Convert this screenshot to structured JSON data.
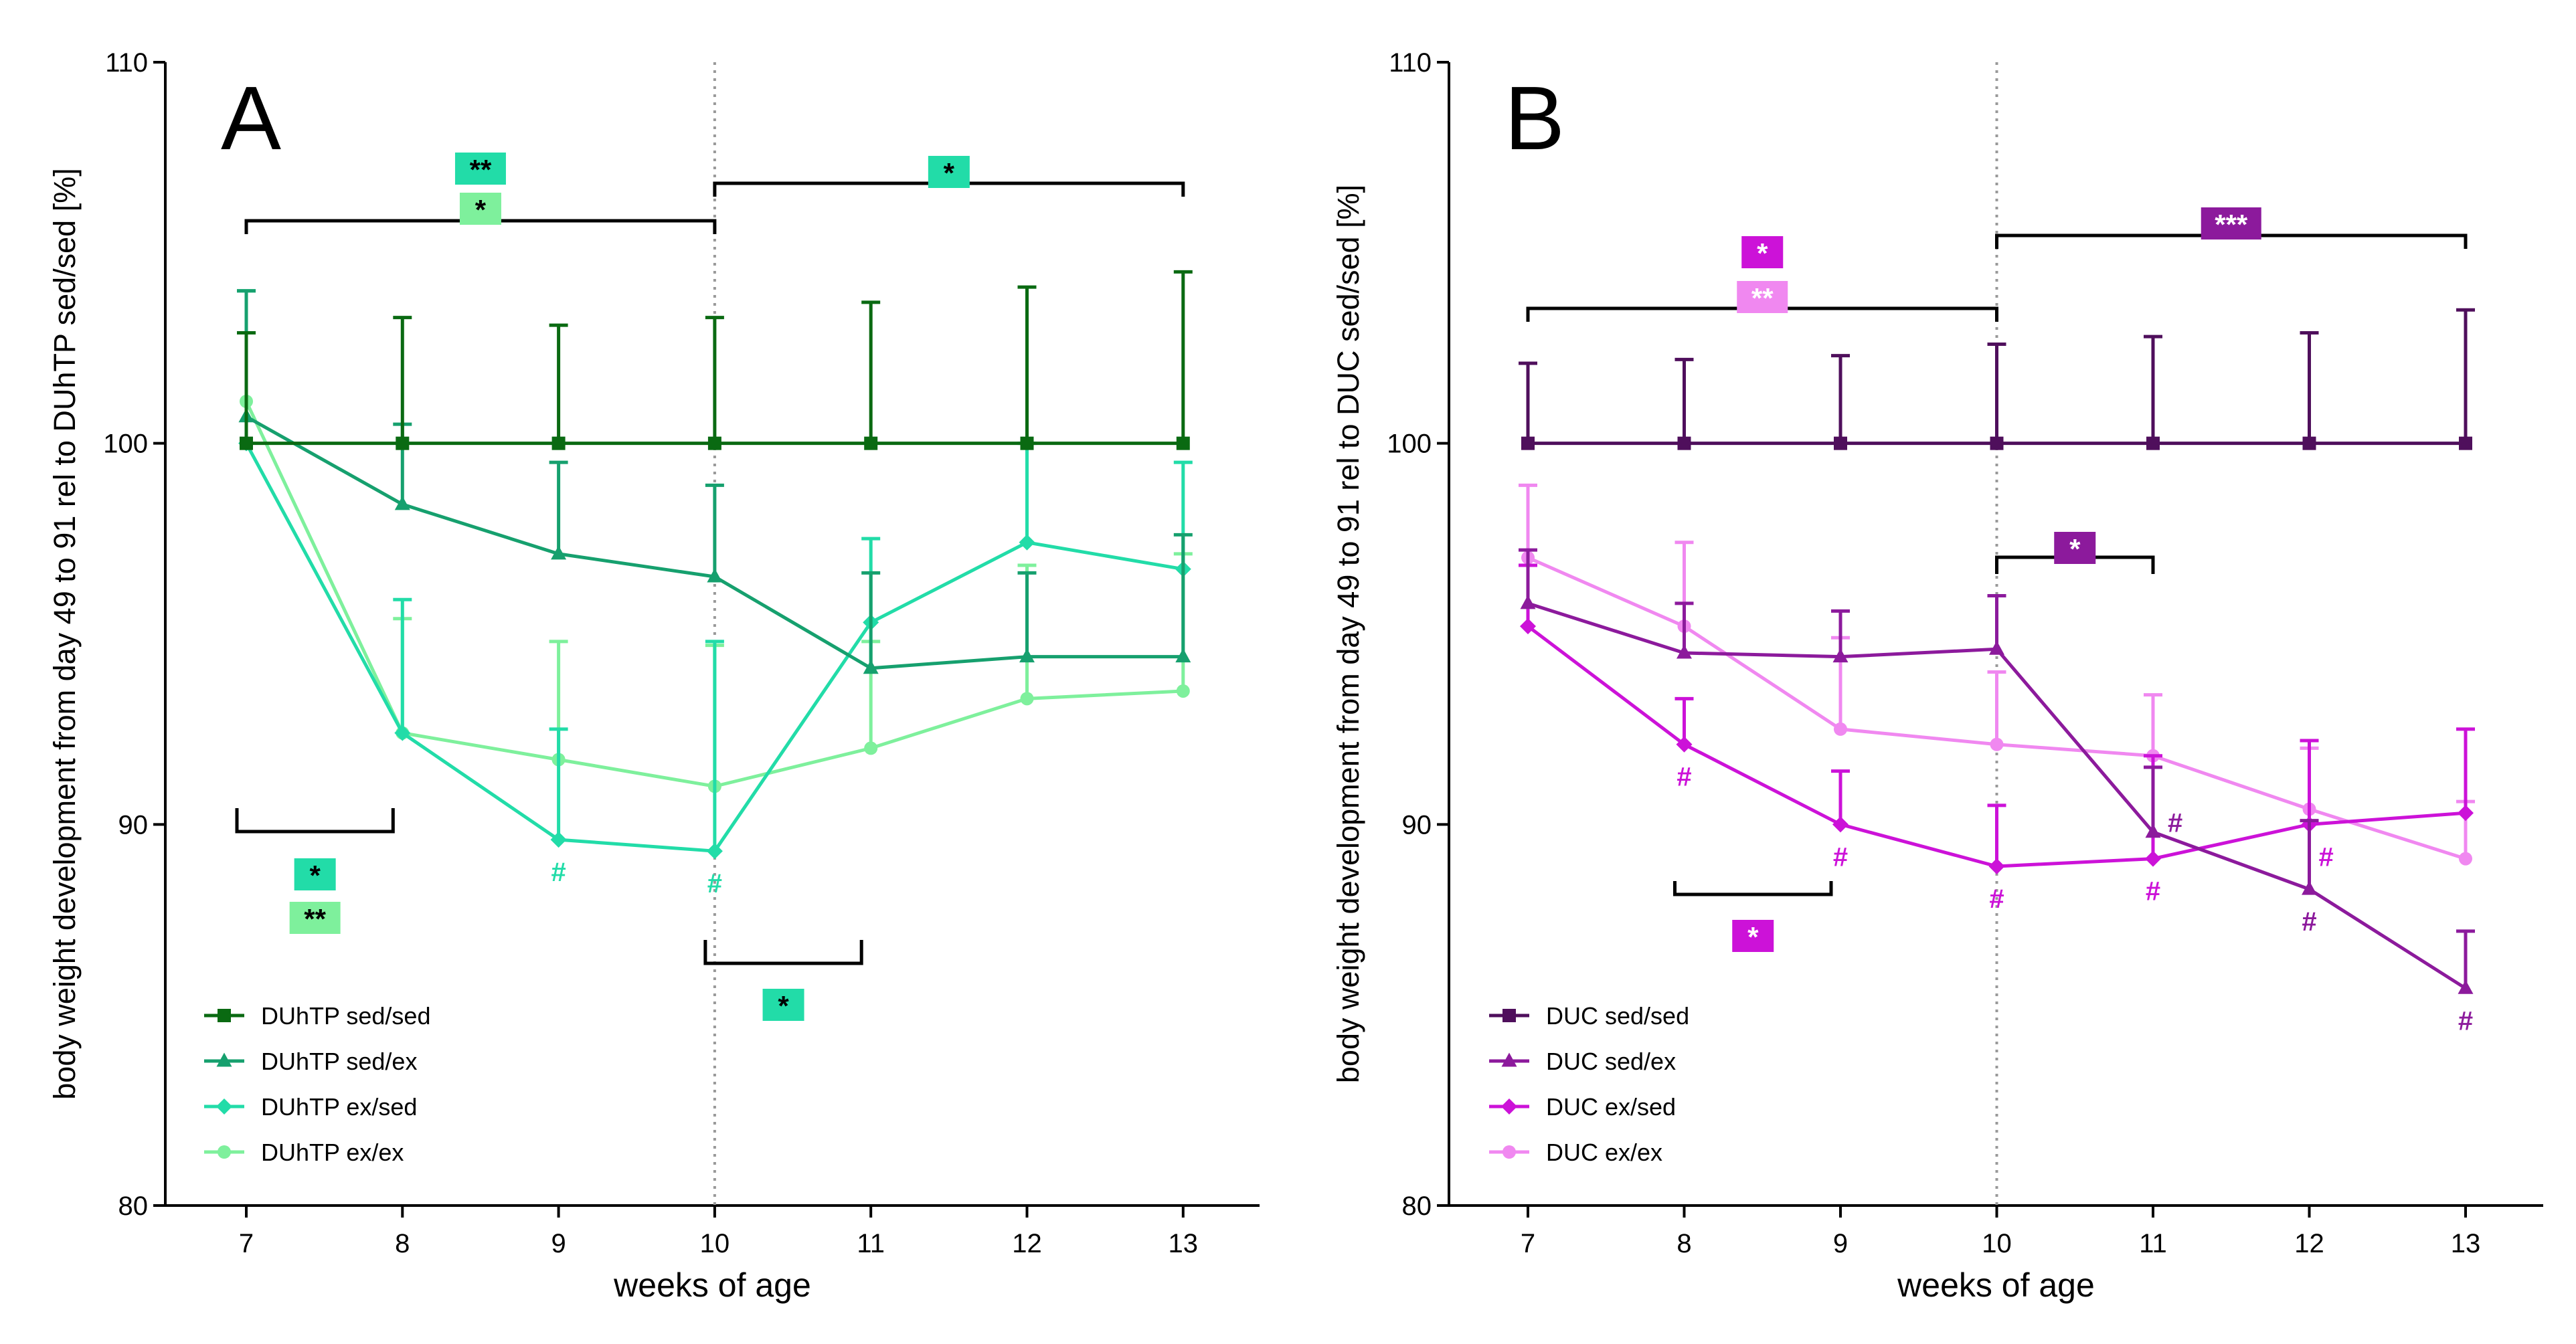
{
  "chart_data": [
    {
      "type": "line",
      "panel_label": "A",
      "xlabel": "weeks of age",
      "ylabel": "body weight development from day 49 to 91 rel to DUhTP sed/sed [%]",
      "x": [
        7,
        8,
        9,
        10,
        11,
        12,
        13
      ],
      "xticks": [
        "7",
        "8",
        "9",
        "10",
        "11",
        "12",
        "13"
      ],
      "ylim": [
        80,
        110
      ],
      "yticks": [
        "80",
        "90",
        "100",
        "110"
      ],
      "vline_x": 10,
      "series": [
        {
          "name": "DUhTP sed/sed",
          "color": "#0a6a12",
          "marker": "square",
          "values": [
            100,
            100,
            100,
            100,
            100,
            100,
            100
          ],
          "err": [
            2.9,
            3.3,
            3.1,
            3.3,
            3.7,
            4.1,
            4.5
          ]
        },
        {
          "name": "DUhTP sed/ex",
          "color": "#16a06e",
          "marker": "triangle",
          "values": [
            100.7,
            98.4,
            97.1,
            96.5,
            94.1,
            94.4,
            94.4
          ],
          "err": [
            3.3,
            2.1,
            2.4,
            2.4,
            2.5,
            2.2,
            3.2
          ]
        },
        {
          "name": "DUhTP ex/sed",
          "color": "#22dca8",
          "marker": "diamond",
          "values": [
            100.0,
            92.4,
            89.6,
            89.3,
            95.3,
            97.4,
            96.7
          ],
          "err": [
            4.0,
            3.5,
            2.9,
            5.5,
            2.2,
            2.6,
            2.8
          ]
        },
        {
          "name": "DUhTP ex/ex",
          "color": "#7ef09c",
          "marker": "circle",
          "values": [
            101.1,
            92.4,
            91.7,
            91.0,
            92.0,
            93.3,
            93.5
          ],
          "err": [
            2.9,
            3.0,
            3.1,
            3.7,
            2.8,
            3.5,
            3.6
          ]
        }
      ],
      "significance": [
        {
          "x1": 7,
          "x2": 10,
          "labels": [
            "**",
            "*"
          ],
          "label_colors": [
            "#22dca8",
            "#7ef09c"
          ],
          "position": "above"
        },
        {
          "x1": 10,
          "x2": 13,
          "labels": [
            "*"
          ],
          "label_colors": [
            "#22dca8"
          ],
          "position": "above"
        },
        {
          "x1": 7,
          "x2": 8,
          "labels": [
            "*",
            "**"
          ],
          "label_colors": [
            "#22dca8",
            "#7ef09c"
          ],
          "position": "below"
        },
        {
          "x1": 10,
          "x2": 11,
          "labels": [
            "*"
          ],
          "label_colors": [
            "#22dca8"
          ],
          "position": "below"
        }
      ],
      "hash_marks": [
        {
          "x": 9,
          "value": 89.6,
          "label": "#",
          "color": "#22dca8"
        },
        {
          "x": 10,
          "value": 89.3,
          "label": "#",
          "color": "#22dca8"
        }
      ]
    },
    {
      "type": "line",
      "panel_label": "B",
      "xlabel": "weeks of age",
      "ylabel": "body weight development from day 49 to 91 rel to DUC sed/sed [%]",
      "x": [
        7,
        8,
        9,
        10,
        11,
        12,
        13
      ],
      "xticks": [
        "7",
        "8",
        "9",
        "10",
        "11",
        "12",
        "13"
      ],
      "ylim": [
        80,
        110
      ],
      "yticks": [
        "80",
        "90",
        "100",
        "110"
      ],
      "vline_x": 10,
      "series": [
        {
          "name": "DUC sed/sed",
          "color": "#4f0f5c",
          "marker": "square",
          "values": [
            100,
            100,
            100,
            100,
            100,
            100,
            100
          ],
          "err": [
            2.1,
            2.2,
            2.3,
            2.6,
            2.8,
            2.9,
            3.5
          ]
        },
        {
          "name": "DUC sed/ex",
          "color": "#8c1a9c",
          "marker": "triangle",
          "values": [
            95.8,
            94.5,
            94.4,
            94.6,
            89.8,
            88.3,
            85.7
          ],
          "err": [
            1.4,
            1.3,
            1.2,
            1.4,
            1.7,
            1.8,
            1.5
          ]
        },
        {
          "name": "DUC ex/sed",
          "color": "#cc12d8",
          "marker": "diamond",
          "values": [
            95.2,
            92.1,
            90.0,
            88.9,
            89.1,
            90.0,
            90.3
          ],
          "err": [
            1.6,
            1.2,
            1.4,
            1.6,
            2.7,
            2.2,
            2.2
          ]
        },
        {
          "name": "DUC ex/ex",
          "color": "#f088f0",
          "marker": "circle",
          "values": [
            97.0,
            95.2,
            92.5,
            92.1,
            91.8,
            90.4,
            89.1
          ],
          "err": [
            1.9,
            2.2,
            2.4,
            1.9,
            1.6,
            1.6,
            1.5
          ]
        }
      ],
      "significance": [
        {
          "x1": 7,
          "x2": 10,
          "labels": [
            "*",
            "**"
          ],
          "label_colors": [
            "#cc12d8",
            "#f088f0"
          ],
          "position": "above"
        },
        {
          "x1": 10,
          "x2": 13,
          "labels": [
            "***"
          ],
          "label_colors": [
            "#8c1a9c"
          ],
          "position": "above"
        },
        {
          "x1": 10,
          "x2": 11,
          "labels": [
            "*"
          ],
          "label_colors": [
            "#8c1a9c"
          ],
          "position": "above"
        },
        {
          "x1": 8,
          "x2": 9,
          "labels": [
            "*"
          ],
          "label_colors": [
            "#cc12d8"
          ],
          "position": "below"
        }
      ],
      "hash_marks": [
        {
          "x": 8,
          "value": 92.1,
          "label": "#",
          "color": "#cc12d8"
        },
        {
          "x": 9,
          "value": 90.0,
          "label": "#",
          "color": "#cc12d8"
        },
        {
          "x": 10,
          "value": 88.9,
          "label": "#",
          "color": "#cc12d8"
        },
        {
          "x": 11,
          "value": 89.1,
          "label": "#",
          "color": "#cc12d8"
        },
        {
          "x": 11,
          "value": 89.8,
          "label": "#",
          "color": "#8c1a9c"
        },
        {
          "x": 12,
          "value": 88.3,
          "label": "#",
          "color": "#8c1a9c"
        },
        {
          "x": 12,
          "value": 90.0,
          "label": "#",
          "color": "#cc12d8"
        },
        {
          "x": 13,
          "value": 85.7,
          "label": "#",
          "color": "#8c1a9c"
        }
      ]
    }
  ]
}
